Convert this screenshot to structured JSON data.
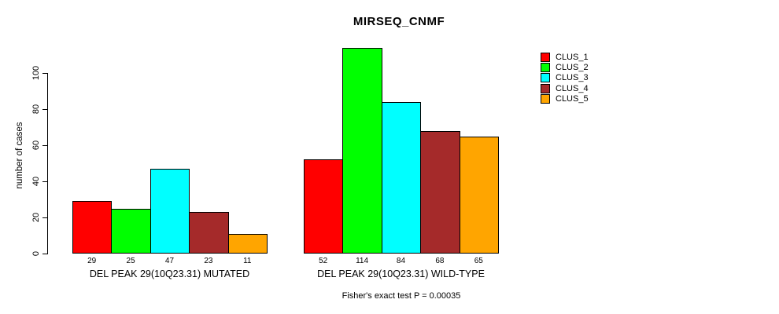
{
  "figure": {
    "title": "MIRSEQ_CNMF",
    "ylabel": "number of cases",
    "footer": "Fisher's exact test P = 0.00035"
  },
  "chart_data": {
    "type": "bar",
    "title": "MIRSEQ_CNMF",
    "xlabel": "",
    "ylabel": "number of cases",
    "ylim": [
      0,
      115
    ],
    "yticks": [
      0,
      20,
      40,
      60,
      80,
      100
    ],
    "grid": false,
    "legend_position": "right",
    "bar_value_labels_shown": true,
    "categories": [
      "DEL PEAK 29(10Q23.31) MUTATED",
      "DEL PEAK 29(10Q23.31) WILD-TYPE"
    ],
    "series": [
      {
        "name": "CLUS_1",
        "color": "#ff0000",
        "values": [
          29,
          52
        ]
      },
      {
        "name": "CLUS_2",
        "color": "#00ff00",
        "values": [
          25,
          114
        ]
      },
      {
        "name": "CLUS_3",
        "color": "#00ffff",
        "values": [
          47,
          84
        ]
      },
      {
        "name": "CLUS_4",
        "color": "#a52a2a",
        "values": [
          23,
          68
        ]
      },
      {
        "name": "CLUS_5",
        "color": "#ffa500",
        "values": [
          11,
          65
        ]
      }
    ],
    "annotation": "Fisher's exact test P = 0.00035"
  }
}
